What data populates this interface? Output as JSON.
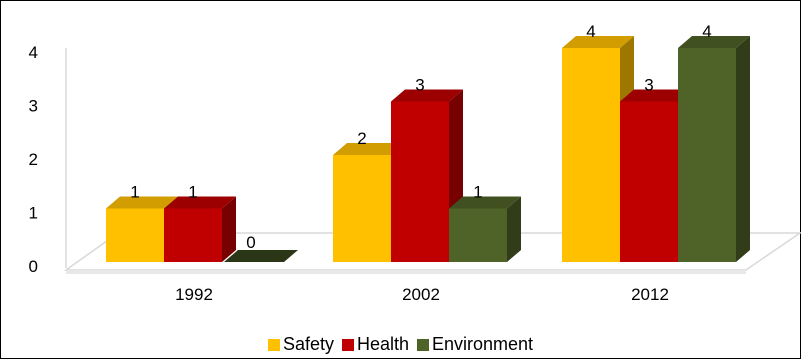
{
  "chart_data": {
    "type": "bar",
    "title": "",
    "xlabel": "",
    "ylabel": "",
    "categories": [
      "1992",
      "2002",
      "2012"
    ],
    "series": [
      {
        "name": "Safety",
        "values": [
          1,
          2,
          4
        ],
        "color": "#FFC000"
      },
      {
        "name": "Health",
        "values": [
          1,
          3,
          3
        ],
        "color": "#C00000"
      },
      {
        "name": "Environment",
        "values": [
          0,
          1,
          4
        ],
        "color": "#4F6228"
      }
    ],
    "ylim": [
      0,
      4
    ],
    "yticks": [
      "0",
      "1",
      "2",
      "3",
      "4"
    ],
    "grid": false,
    "data_labels": true,
    "style": "3d-clustered-column",
    "legend_position": "bottom"
  }
}
